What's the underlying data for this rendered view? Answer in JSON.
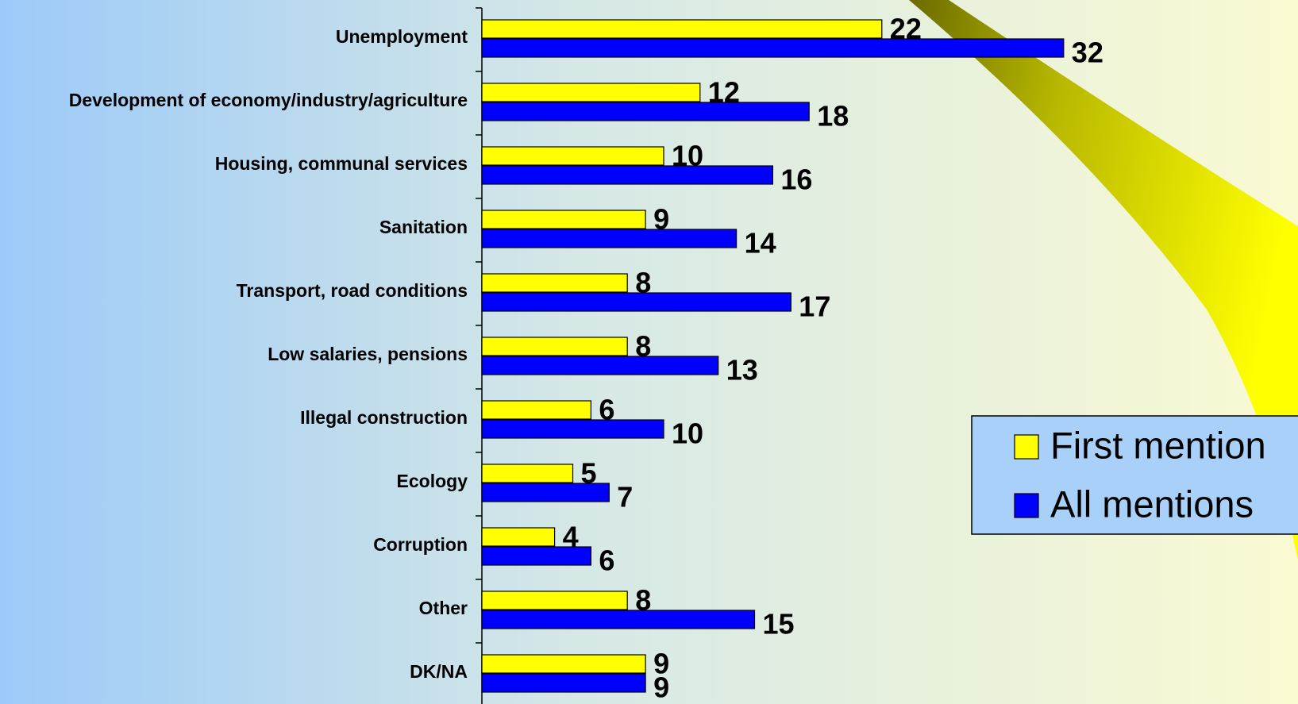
{
  "chart_data": {
    "type": "bar",
    "orientation": "horizontal",
    "categories": [
      "Unemployment",
      "Development of economy/industry/agriculture",
      "Housing, communal services",
      "Sanitation",
      "Transport, road conditions",
      "Low salaries, pensions",
      "Illegal construction",
      "Ecology",
      "Corruption",
      "Other",
      "DK/NA"
    ],
    "series": [
      {
        "name": "First mention",
        "color": "#ffff00",
        "values": [
          22,
          12,
          10,
          9,
          8,
          8,
          6,
          5,
          4,
          8,
          9
        ]
      },
      {
        "name": "All mentions",
        "color": "#0000ff",
        "values": [
          32,
          18,
          16,
          14,
          17,
          13,
          10,
          7,
          6,
          15,
          9
        ]
      }
    ],
    "legend": "right"
  }
}
